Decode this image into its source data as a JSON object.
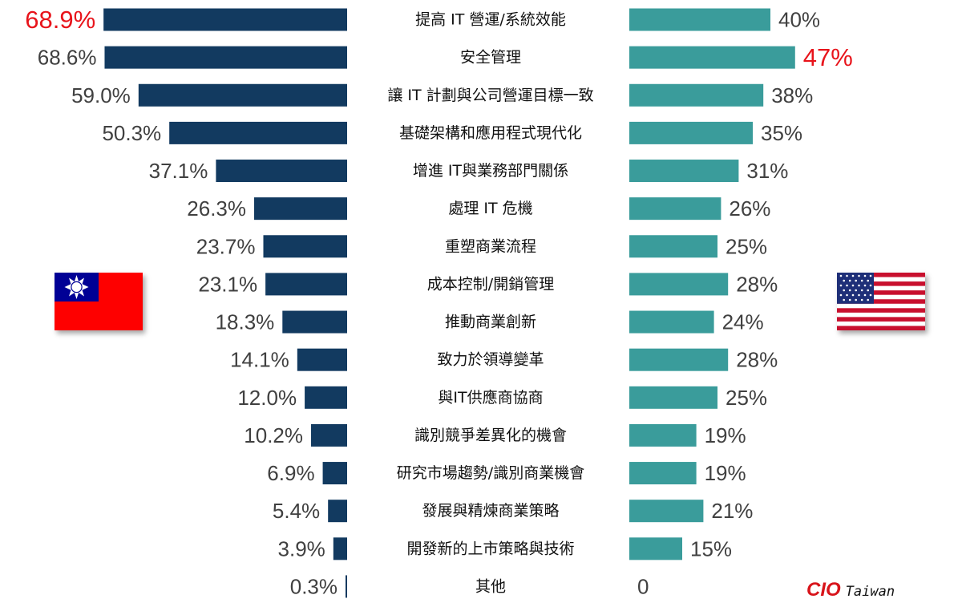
{
  "chart_data": {
    "type": "bar",
    "categories": [
      "提高 IT 營運/系統效能",
      "安全管理",
      "讓 IT 計劃與公司營運目標一致",
      "基礎架構和應用程式現代化",
      "增進 IT與業務部門關係",
      "處理 IT 危機",
      "重塑商業流程",
      "成本控制/開銷管理",
      "推動商業創新",
      "致力於領導變革",
      "與IT供應商協商",
      "識別競爭差異化的機會",
      "研究市場趨勢/識別商業機會",
      "發展與精煉商業策略",
      "開發新的上市策略與技術",
      "其他"
    ],
    "series": [
      {
        "side": "left",
        "color": "#123a60",
        "values": [
          68.9,
          68.6,
          59.0,
          50.3,
          37.1,
          26.3,
          23.7,
          23.1,
          18.3,
          14.1,
          12.0,
          10.2,
          6.9,
          5.4,
          3.9,
          0.3
        ],
        "labels": [
          "68.9%",
          "68.6%",
          "59.0%",
          "50.3%",
          "37.1%",
          "26.3%",
          "23.7%",
          "23.1%",
          "18.3%",
          "14.1%",
          "12.0%",
          "10.2%",
          "6.9%",
          "5.4%",
          "3.9%",
          "0.3%"
        ],
        "highlight_index": 0,
        "highlight_color": "#e8141b"
      },
      {
        "side": "right",
        "color": "#3a9c9b",
        "values": [
          40,
          47,
          38,
          35,
          31,
          26,
          25,
          28,
          24,
          28,
          25,
          19,
          19,
          21,
          15,
          0
        ],
        "labels": [
          "40%",
          "47%",
          "38%",
          "35%",
          "31%",
          "26%",
          "25%",
          "28%",
          "24%",
          "28%",
          "25%",
          "19%",
          "19%",
          "21%",
          "15%",
          "0"
        ],
        "highlight_index": 1,
        "highlight_color": "#e8141b"
      }
    ],
    "grid": false,
    "legend": "none"
  },
  "flags": {
    "left": "taiwan-flag",
    "right": "usa-flag"
  },
  "brand": {
    "cio": "CIO",
    "name": "Taiwan"
  }
}
